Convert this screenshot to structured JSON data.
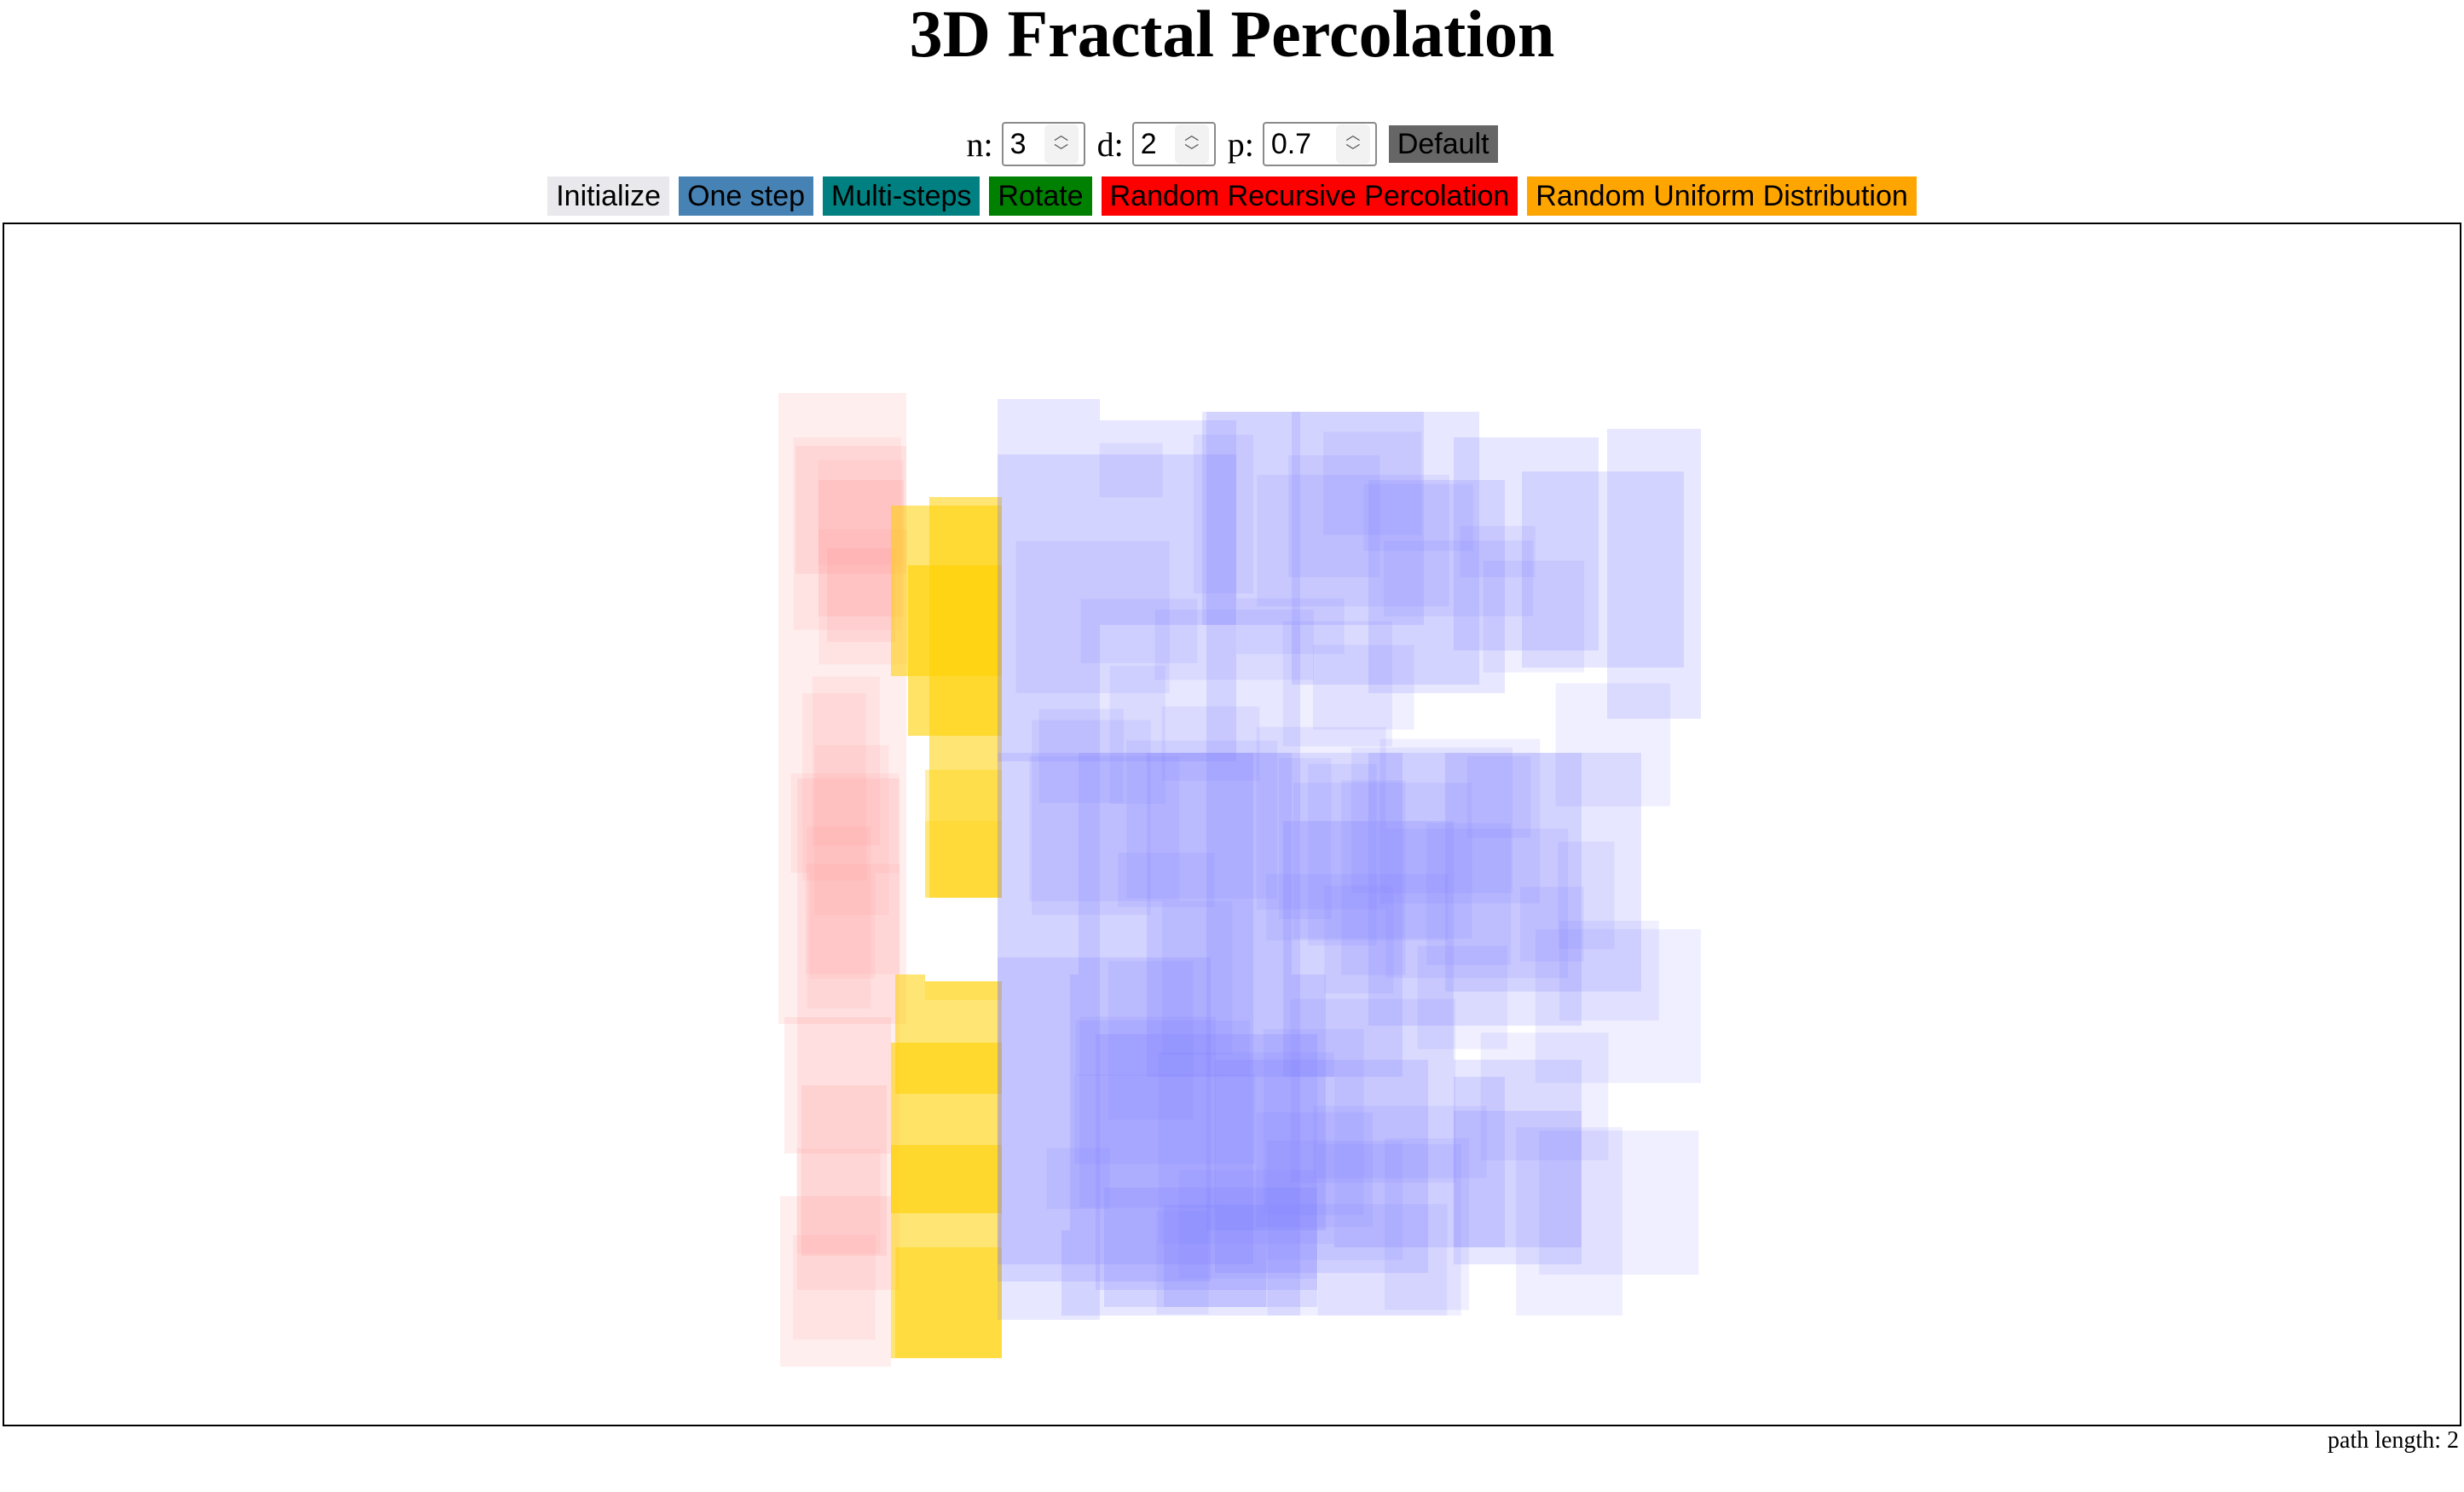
{
  "title": "3D Fractal Percolation",
  "params": {
    "n_label": "n:",
    "n_value": "3",
    "d_label": "d:",
    "d_value": "2",
    "p_label": "p:",
    "p_value": "0.7",
    "default_label": "Default"
  },
  "buttons": {
    "initialize": "Initialize",
    "one_step": "One step",
    "multi_steps": "Multi-steps",
    "rotate": "Rotate",
    "random_recursive": "Random Recursive Percolation",
    "random_uniform": "Random Uniform Distribution"
  },
  "colors": {
    "initialize": "#e9e9ed",
    "one_step": "#4682b4",
    "multi_steps": "#008080",
    "rotate": "#008000",
    "random_recursive": "#ff0000",
    "random_uniform": "#ffa500",
    "default": "#666666",
    "cube_blue": "#7b7bff",
    "cube_red": "#ff8a8a",
    "cube_yellow": "#ffd000"
  },
  "status": {
    "path_length": "path length: 2"
  }
}
